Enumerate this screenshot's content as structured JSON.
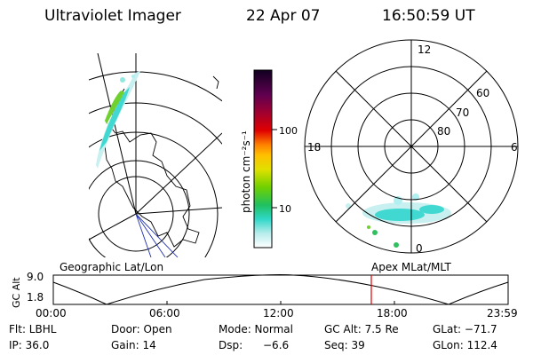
{
  "header": {
    "title": "Ultraviolet Imager",
    "date": "22 Apr 07",
    "time": "16:50:59 UT"
  },
  "colorbar": {
    "unit_label": "photon cm⁻²s⁻¹",
    "ticks": [
      "100",
      "10"
    ]
  },
  "polar_plot": {
    "mlt_labels": [
      "12",
      "18",
      "6",
      "0"
    ],
    "lat_labels": [
      "60",
      "70",
      "80"
    ]
  },
  "panels": {
    "left_label": "Geographic Lat/Lon",
    "right_label": "Apex MLat/MLT"
  },
  "altitude_plot": {
    "axis_label": "GC Alt",
    "y_ticks": [
      "9.0",
      "1.8"
    ],
    "x_ticks": [
      "00:00",
      "06:00",
      "12:00",
      "18:00",
      "23:59"
    ],
    "marker_color": "#e00000"
  },
  "footer": {
    "flt": "Flt: LBHL",
    "door": "Door: Open",
    "mode": "Mode: Normal",
    "gc_alt": "GC Alt: 7.5 Re",
    "glat": "GLat: −71.7",
    "ip": "IP: 36.0",
    "gain": "Gain: 14",
    "dsp_label": "Dsp:",
    "dsp_value": "−6.6",
    "seq": "Seq: 39",
    "glon": "GLon: 112.4"
  }
}
